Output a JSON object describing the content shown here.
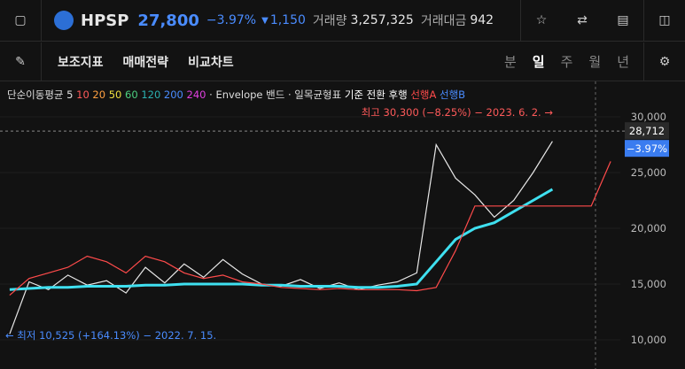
{
  "header": {
    "symbol": "HPSP",
    "price": "27,800",
    "change": "−3.97%",
    "diff": "1,150",
    "volume_label": "거래량",
    "volume": "3,257,325",
    "amount_label": "거래대금",
    "amount": "942"
  },
  "toolbar": {
    "items": [
      "보조지표",
      "매매전략",
      "비교차트"
    ],
    "periods": [
      "분",
      "일",
      "주",
      "월",
      "년"
    ],
    "active_period": 1
  },
  "indicators": {
    "ma_name": "단순이동평균",
    "ma_legend": [
      {
        "period": 5,
        "color": "#e0e0e0"
      },
      {
        "period": 10,
        "color": "#ff5a5a"
      },
      {
        "period": 20,
        "color": "#ffa040"
      },
      {
        "period": 50,
        "color": "#f0e040"
      },
      {
        "period": 60,
        "color": "#4cd080"
      },
      {
        "period": 120,
        "color": "#2bb0b0"
      },
      {
        "period": 200,
        "color": "#4a8cff"
      },
      {
        "period": 240,
        "color": "#e040e0"
      }
    ],
    "envelope": "· Envelope",
    "band": "밴드 · 일목균형표",
    "ichimoku": [
      {
        "name": "기준",
        "color": "#ffffff"
      },
      {
        "name": "전환",
        "color": "#ffffff"
      },
      {
        "name": "후행",
        "color": "#ffffff"
      },
      {
        "name": "선행A",
        "color": "#ff4b4b"
      },
      {
        "name": "선행B",
        "color": "#4a8cff"
      }
    ]
  },
  "chart_data": {
    "type": "line",
    "categories": [
      null,
      null,
      null,
      null,
      null,
      null,
      null,
      null,
      null,
      null,
      null,
      null,
      null,
      null,
      null,
      null,
      null,
      null,
      null,
      null,
      null,
      null,
      null,
      null,
      null,
      null,
      null,
      null,
      null,
      null,
      null,
      null
    ],
    "series": [
      {
        "name": "가격",
        "color": "#e8e8e8",
        "values": [
          10525,
          15200,
          14500,
          15800,
          14900,
          15300,
          14200,
          16500,
          15100,
          16800,
          15600,
          17200,
          15900,
          15000,
          14800,
          15400,
          14600,
          15100,
          14500,
          14900,
          15200,
          16000,
          27500,
          24500,
          23000,
          21000,
          22500,
          25000,
          27800,
          null,
          null,
          null
        ]
      },
      {
        "name": "이동평균",
        "color": "#3fe0f0",
        "values": [
          14500,
          14600,
          14700,
          14700,
          14800,
          14800,
          14800,
          14900,
          14900,
          15000,
          15000,
          15000,
          15000,
          14900,
          14900,
          14800,
          14800,
          14800,
          14700,
          14700,
          14800,
          15000,
          17000,
          19000,
          20000,
          20500,
          21500,
          22500,
          23500,
          null,
          null,
          null
        ]
      },
      {
        "name": "선행A",
        "color": "#ff4b4b",
        "values": [
          14000,
          15500,
          16000,
          16500,
          17500,
          17000,
          16000,
          17500,
          17000,
          16000,
          15500,
          15800,
          15200,
          15000,
          14700,
          14600,
          14500,
          14600,
          14500,
          14500,
          14500,
          14400,
          14700,
          18000,
          22000,
          22000,
          22000,
          22000,
          22000,
          22000,
          22000,
          26000
        ]
      }
    ],
    "ylim": [
      7380,
      33170
    ],
    "yticks": [
      {
        "value": 10000,
        "label": "10,000"
      },
      {
        "value": 15000,
        "label": "15,000"
      },
      {
        "value": 20000,
        "label": "20,000"
      },
      {
        "value": 25000,
        "label": "25,000"
      },
      {
        "value": 30000,
        "label": "30,000"
      }
    ],
    "high_note": "최고 30,300 (−8.25%) − 2023. 6. 2. →",
    "low_note": "← 최저 10,525 (+164.13%) − 2022. 7. 15.",
    "crosshair": {
      "value": 28712,
      "label": "28,712",
      "change": "−3.97%"
    }
  }
}
